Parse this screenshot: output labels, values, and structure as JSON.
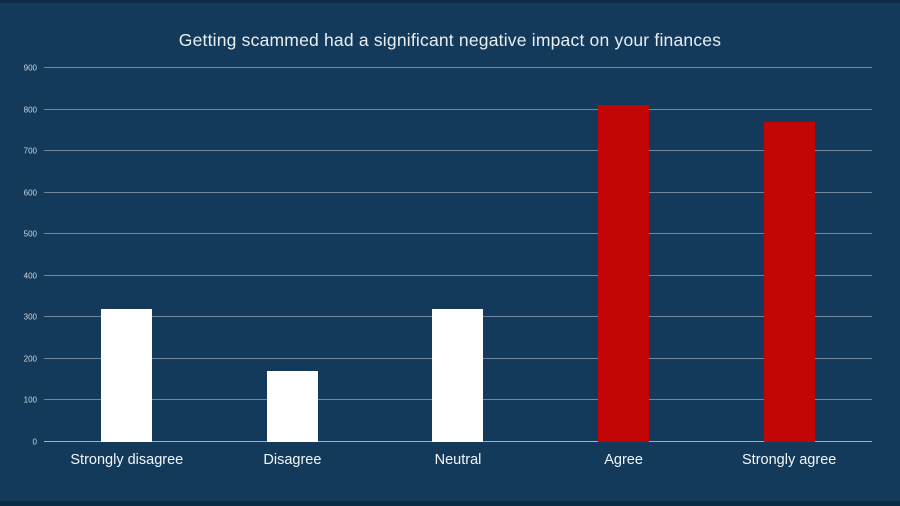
{
  "colors": {
    "background": "#143a5b",
    "bar_white": "#ffffff",
    "bar_red": "#c20505",
    "gridline": "#7f96a9",
    "axis_line": "#9db1c0",
    "title_text": "#e9eef2",
    "tick_text": "#c9d5dd",
    "category_text": "#f2f6f8"
  },
  "chart_data": {
    "type": "bar",
    "title": "Getting scammed had a significant negative impact on your finances",
    "categories": [
      "Strongly disagree",
      "Disagree",
      "Neutral",
      "Agree",
      "Strongly agree"
    ],
    "values": [
      320,
      170,
      320,
      810,
      770
    ],
    "bar_colors": [
      "#ffffff",
      "#ffffff",
      "#ffffff",
      "#c20505",
      "#c20505"
    ],
    "xlabel": "",
    "ylabel": "",
    "ylim": [
      0,
      900
    ],
    "yticks": [
      0,
      100,
      200,
      300,
      400,
      500,
      600,
      700,
      800,
      900
    ],
    "grid": true,
    "legend": false
  }
}
